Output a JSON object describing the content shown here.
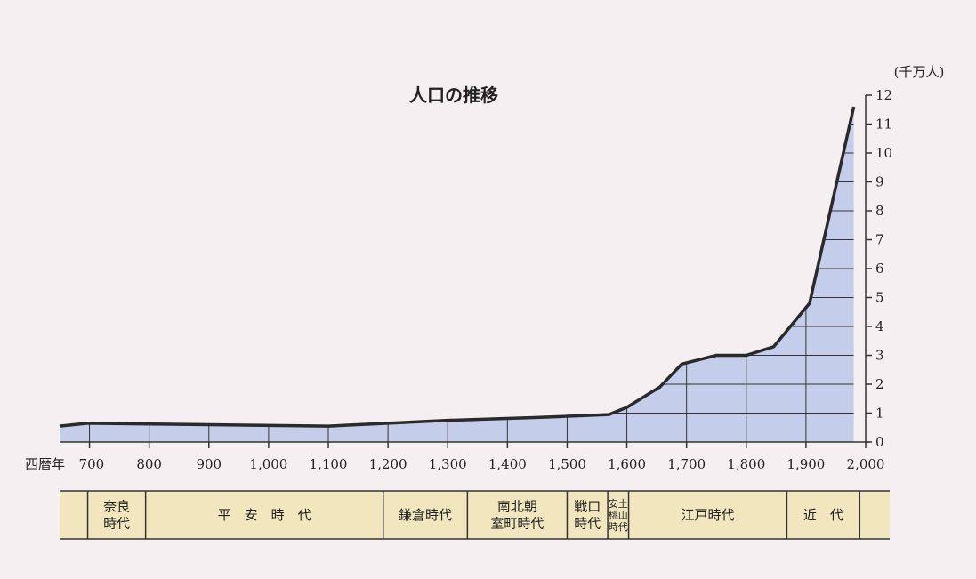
{
  "chart_data": {
    "type": "area",
    "title": "人口の推移",
    "unit_label": "(千万人)",
    "x_prefix_label": "西暦年",
    "xlim": [
      650,
      2000
    ],
    "ylim": [
      0,
      12
    ],
    "x_ticks": [
      {
        "value": 700,
        "label": "700"
      },
      {
        "value": 800,
        "label": "800"
      },
      {
        "value": 900,
        "label": "900"
      },
      {
        "value": 1000,
        "label": "1,000"
      },
      {
        "value": 1100,
        "label": "1,100"
      },
      {
        "value": 1200,
        "label": "1,200"
      },
      {
        "value": 1300,
        "label": "1,300"
      },
      {
        "value": 1400,
        "label": "1,400"
      },
      {
        "value": 1500,
        "label": "1,500"
      },
      {
        "value": 1600,
        "label": "1,600"
      },
      {
        "value": 1700,
        "label": "1,700"
      },
      {
        "value": 1800,
        "label": "1,800"
      },
      {
        "value": 1900,
        "label": "1,900"
      },
      {
        "value": 2000,
        "label": "2,000"
      }
    ],
    "y_ticks": [
      0,
      1,
      2,
      3,
      4,
      5,
      6,
      7,
      8,
      9,
      10,
      11,
      12
    ],
    "grid": true,
    "x": [
      650,
      697,
      900,
      1100,
      1200,
      1300,
      1450,
      1570,
      1600,
      1655,
      1692,
      1750,
      1800,
      1846,
      1906,
      1980
    ],
    "y": [
      0.55,
      0.65,
      0.6,
      0.55,
      0.65,
      0.75,
      0.85,
      0.95,
      1.2,
      1.9,
      2.7,
      3.0,
      3.0,
      3.3,
      4.8,
      11.6
    ],
    "colors": {
      "fill": "#c4ceeb",
      "line": "#2a2a2a",
      "grid": "#333333",
      "period_band": "#f2e6bf"
    }
  },
  "periods": [
    {
      "lines": [
        "奈良",
        "時代"
      ],
      "start": 697,
      "end": 794
    },
    {
      "lines": [
        "平　安　時　代"
      ],
      "start": 794,
      "end": 1192
    },
    {
      "lines": [
        "鎌倉時代"
      ],
      "start": 1192,
      "end": 1333
    },
    {
      "lines": [
        "南北朝",
        "室町時代"
      ],
      "start": 1333,
      "end": 1500
    },
    {
      "lines": [
        "戦口",
        "時代"
      ],
      "start": 1500,
      "end": 1568
    },
    {
      "lines": [
        "安土",
        "桃山",
        "時代"
      ],
      "start": 1568,
      "end": 1603,
      "small": true
    },
    {
      "lines": [
        "江戸時代"
      ],
      "start": 1603,
      "end": 1868
    },
    {
      "lines": [
        "近　代"
      ],
      "start": 1868,
      "end": 1990
    }
  ]
}
